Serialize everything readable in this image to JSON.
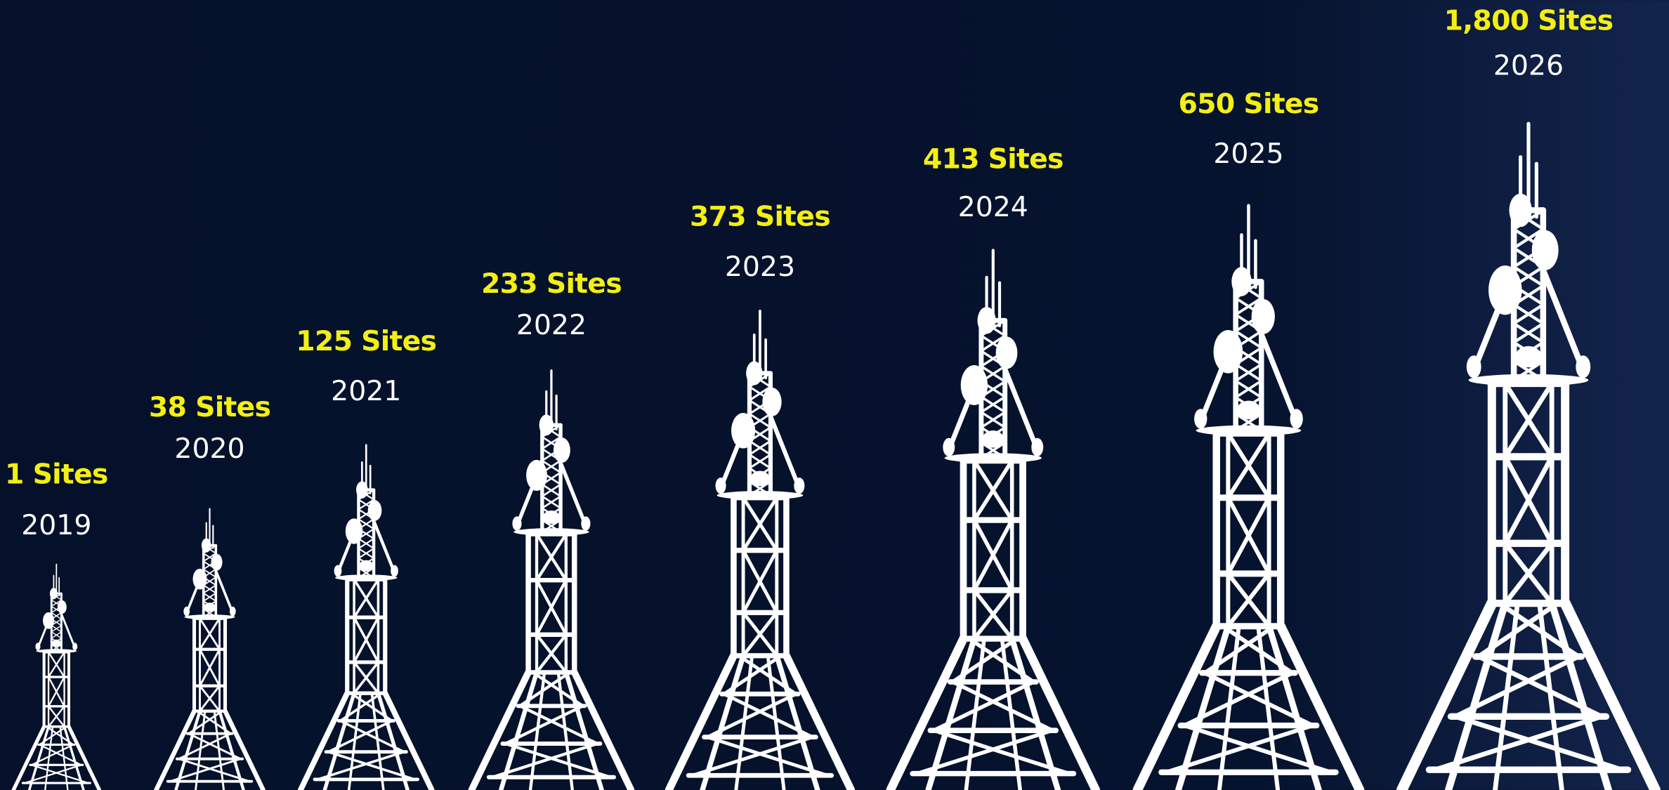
{
  "items": [
    {
      "sites": "1 Sites",
      "year": "2019"
    },
    {
      "sites": "38 Sites",
      "year": "2020"
    },
    {
      "sites": "125 Sites",
      "year": "2021"
    },
    {
      "sites": "233 Sites",
      "year": "2022"
    },
    {
      "sites": "373 Sites",
      "year": "2023"
    },
    {
      "sites": "413 Sites",
      "year": "2024"
    },
    {
      "sites": "650 Sites",
      "year": "2025"
    },
    {
      "sites": "1,800 Sites",
      "year": "2026"
    }
  ]
}
